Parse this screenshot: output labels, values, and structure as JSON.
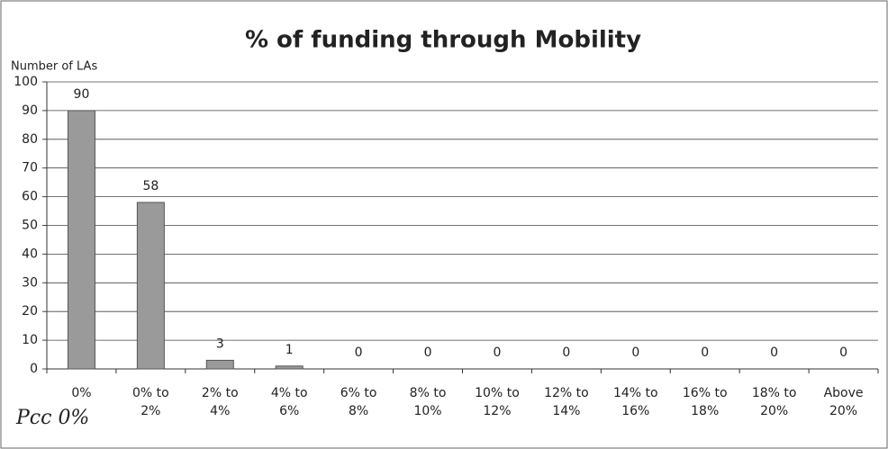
{
  "chart_data": {
    "type": "bar",
    "title": "% of funding through Mobility",
    "y_label": "Number of LAs",
    "categories": [
      "0%",
      "0% to 2%",
      "2% to 4%",
      "4% to 6%",
      "6% to 8%",
      "8% to 10%",
      "10% to 12%",
      "12% to 14%",
      "14% to 16%",
      "16% to 18%",
      "18% to 20%",
      "Above 20%"
    ],
    "values": [
      90,
      58,
      3,
      1,
      0,
      0,
      0,
      0,
      0,
      0,
      0,
      0
    ],
    "color": "#9a9a9a",
    "ylim": [
      0,
      100
    ],
    "yticks": [
      0,
      10,
      20,
      30,
      40,
      50,
      60,
      70,
      80,
      90,
      100
    ],
    "grid": true,
    "annotation": "Pcc 0%"
  }
}
